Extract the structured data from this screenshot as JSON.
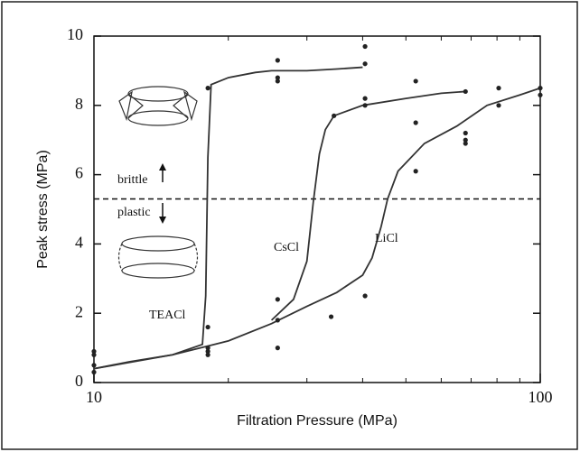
{
  "chart_data": {
    "type": "line",
    "xlabel": "Filtration Pressure (MPa)",
    "ylabel": "Peak stress (MPa)",
    "xscale": "log",
    "xlim": [
      10,
      100
    ],
    "xticks": [
      10,
      100
    ],
    "xminorticks": [
      20,
      30,
      40,
      50,
      60,
      70,
      80,
      90
    ],
    "ylim": [
      0,
      10
    ],
    "yticks": [
      0,
      2,
      4,
      6,
      8,
      10
    ],
    "series": [
      {
        "name": "TEACl",
        "color": "#333333",
        "x": [
          10,
          12,
          15,
          17.5,
          17.8,
          18,
          18.3,
          20,
          23,
          25,
          30,
          35,
          40
        ],
        "values": [
          0.4,
          0.6,
          0.8,
          1.1,
          2.5,
          6.5,
          8.6,
          8.8,
          8.95,
          9.0,
          9.0,
          9.05,
          9.1
        ]
      },
      {
        "name": "CsCl",
        "color": "#333333",
        "x": [
          25,
          28,
          30,
          31,
          32,
          33,
          34.5,
          40,
          50,
          60,
          68
        ],
        "values": [
          1.8,
          2.4,
          3.5,
          5.2,
          6.6,
          7.3,
          7.7,
          8.0,
          8.2,
          8.35,
          8.4
        ]
      },
      {
        "name": "LiCl",
        "color": "#333333",
        "x": [
          10,
          15,
          20,
          25,
          30,
          35,
          40,
          42,
          44,
          45.5,
          48,
          55,
          65,
          76,
          90,
          100
        ],
        "values": [
          0.4,
          0.8,
          1.2,
          1.7,
          2.2,
          2.6,
          3.1,
          3.6,
          4.5,
          5.3,
          6.1,
          6.9,
          7.4,
          8.0,
          8.3,
          8.5
        ]
      }
    ],
    "points": {
      "color": "#222222",
      "x": [
        10,
        10,
        10,
        10,
        18,
        18,
        18,
        18,
        18,
        25.8,
        25.8,
        25.8,
        25.8,
        25.8,
        25.8,
        34,
        34.5,
        40.5,
        40.5,
        40.5,
        40.5,
        40.5,
        52.6,
        52.6,
        52.6,
        68,
        68,
        68,
        68,
        80.7,
        80.7,
        100,
        100
      ],
      "y": [
        0.9,
        0.5,
        0.3,
        0.8,
        8.5,
        1.6,
        1.0,
        0.9,
        0.8,
        9.3,
        8.8,
        8.7,
        2.4,
        1.8,
        1.0,
        1.9,
        7.7,
        9.7,
        9.2,
        8.2,
        8.0,
        2.5,
        8.7,
        7.5,
        6.1,
        8.4,
        7.2,
        7.0,
        6.9,
        8.5,
        8.0,
        8.5,
        8.3
      ]
    },
    "threshold": 5.3,
    "annotations": [
      "brittle",
      "plastic"
    ]
  }
}
